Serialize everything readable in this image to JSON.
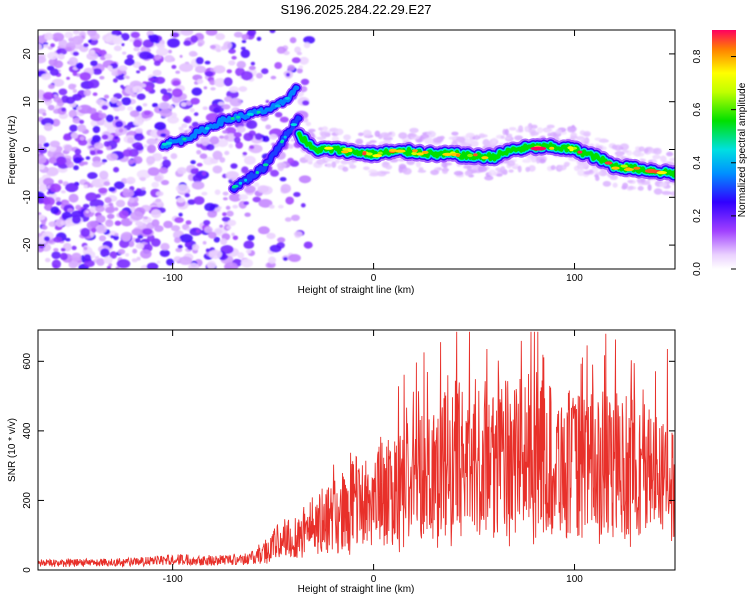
{
  "title": "S196.2025.284.22.29.E27",
  "colors": {
    "snr_line": "#e8302a",
    "axis": "#000000",
    "background": "#ffffff"
  },
  "chart_data": [
    {
      "type": "heatmap",
      "title": "S196.2025.284.22.29.E27",
      "xlabel": "Height of straight line (km)",
      "ylabel": "Frequency (Hz)",
      "xlim": [
        -167,
        150
      ],
      "ylim": [
        -25,
        25
      ],
      "xticks": [
        -100,
        0,
        100
      ],
      "xtick_labels": [
        "-100",
        "0",
        "100"
      ],
      "yticks": [
        -20,
        -10,
        0,
        10,
        20
      ],
      "ytick_labels": [
        "-20",
        "-10",
        "0",
        "10",
        "20"
      ],
      "colorbar": {
        "label": "Normalized spectral amplitude",
        "range": [
          0,
          0.9
        ],
        "ticks": [
          0,
          0.2,
          0.4,
          0.6,
          0.8
        ],
        "tick_labels": [
          "0.0",
          "0.2",
          "0.4",
          "0.6",
          "0.8"
        ]
      },
      "ridges": [
        {
          "name": "upper-track",
          "x": [
            -105,
            -95,
            -85,
            -75,
            -65,
            -55,
            -48,
            -42,
            -38
          ],
          "freq": [
            1,
            2,
            4,
            6,
            7,
            8,
            9,
            11,
            13
          ],
          "amplitude": 0.35
        },
        {
          "name": "lower-track",
          "x": [
            -70,
            -62,
            -55,
            -50,
            -45,
            -40,
            -37
          ],
          "freq": [
            -8,
            -6,
            -4,
            -1,
            2,
            5,
            7
          ],
          "amplitude": 0.3
        },
        {
          "name": "main-track",
          "x": [
            -37,
            -30,
            -20,
            -10,
            0,
            10,
            20,
            30,
            40,
            50,
            60,
            70,
            80,
            90,
            100,
            110,
            120,
            130,
            140,
            150
          ],
          "freq": [
            3,
            0,
            0,
            -0.5,
            -1,
            -0.5,
            -0.5,
            -1,
            -1,
            -1.5,
            -1.5,
            0,
            0.5,
            0.5,
            0,
            -1.5,
            -3.5,
            -4,
            -4.5,
            -5
          ],
          "amplitude": 0.9
        }
      ]
    },
    {
      "type": "line",
      "xlabel": "Height of straight line (km)",
      "ylabel": "SNR (10 * v/v)",
      "xlim": [
        -167,
        150
      ],
      "ylim": [
        0,
        690
      ],
      "xticks": [
        -100,
        0,
        100
      ],
      "xtick_labels": [
        "-100",
        "0",
        "100"
      ],
      "yticks": [
        0,
        200,
        400,
        600
      ],
      "ytick_labels": [
        "0",
        "200",
        "400",
        "600"
      ],
      "series": [
        {
          "name": "SNR",
          "x": [
            -167,
            -150,
            -130,
            -110,
            -100,
            -90,
            -80,
            -70,
            -60,
            -55,
            -50,
            -45,
            -40,
            -35,
            -30,
            -25,
            -20,
            -15,
            -10,
            -5,
            0,
            5,
            10,
            15,
            20,
            25,
            30,
            35,
            40,
            45,
            50,
            55,
            60,
            65,
            70,
            75,
            80,
            85,
            90,
            95,
            100,
            105,
            110,
            115,
            120,
            125,
            130,
            135,
            140,
            145,
            150
          ],
          "values": [
            20,
            20,
            22,
            25,
            30,
            30,
            28,
            30,
            35,
            50,
            70,
            90,
            95,
            110,
            130,
            140,
            150,
            170,
            190,
            200,
            210,
            220,
            230,
            250,
            270,
            290,
            300,
            310,
            320,
            320,
            330,
            320,
            330,
            320,
            330,
            340,
            330,
            320,
            320,
            310,
            300,
            300,
            310,
            300,
            290,
            290,
            300,
            290,
            280,
            280,
            270
          ]
        }
      ]
    }
  ]
}
